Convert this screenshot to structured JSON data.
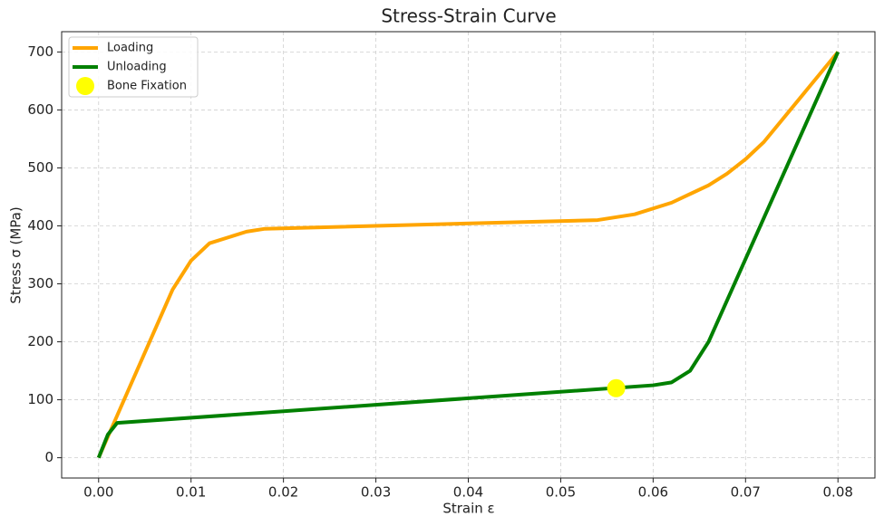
{
  "chart_data": {
    "type": "line",
    "title": "Stress-Strain Curve",
    "x_label": "Strain ε",
    "y_label": "Stress σ (MPa)",
    "xlim": [
      -0.004,
      0.084
    ],
    "ylim": [
      -35,
      735
    ],
    "xticks": [
      {
        "value": 0,
        "label": "0.00"
      },
      {
        "value": 0.01,
        "label": "0.01"
      },
      {
        "value": 0.02,
        "label": "0.02"
      },
      {
        "value": 0.03,
        "label": "0.03"
      },
      {
        "value": 0.04,
        "label": "0.04"
      },
      {
        "value": 0.05,
        "label": "0.05"
      },
      {
        "value": 0.06,
        "label": "0.06"
      },
      {
        "value": 0.07,
        "label": "0.07"
      },
      {
        "value": 0.08,
        "label": "0.08"
      }
    ],
    "yticks": [
      0,
      100,
      200,
      300,
      400,
      500,
      600,
      700
    ],
    "grid": true,
    "legend": "upper-left",
    "series": [
      {
        "name": "Loading",
        "color": "#ffa500",
        "style": "line",
        "x": [
          0,
          0.008,
          0.01,
          0.012,
          0.016,
          0.018,
          0.054,
          0.058,
          0.062,
          0.066,
          0.068,
          0.07,
          0.072,
          0.08
        ],
        "values": [
          0,
          290,
          340,
          370,
          390,
          395,
          410,
          420,
          440,
          470,
          490,
          515,
          545,
          700
        ]
      },
      {
        "name": "Unloading",
        "color": "#008000",
        "style": "line",
        "x": [
          0,
          0.001,
          0.002,
          0.06,
          0.062,
          0.064,
          0.066,
          0.08
        ],
        "values": [
          0,
          40,
          60,
          125,
          130,
          150,
          200,
          700
        ]
      },
      {
        "name": "Bone Fixation",
        "color": "#ffff00",
        "style": "scatter",
        "x": [
          0.056
        ],
        "values": [
          120
        ]
      }
    ]
  }
}
